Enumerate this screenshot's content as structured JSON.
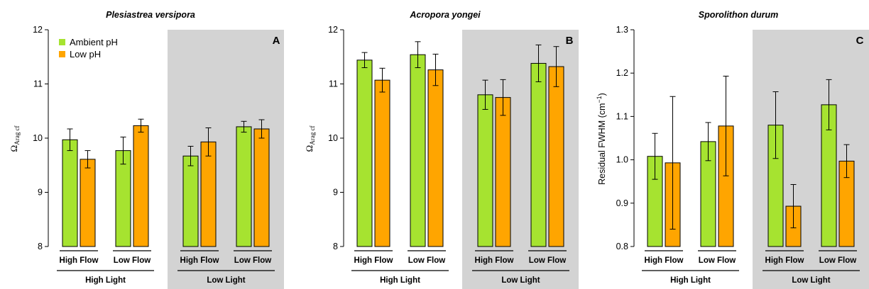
{
  "colors": {
    "ambient": "#a6e330",
    "low": "#ffa500",
    "shade": "#d3d3d3",
    "ink": "#000000"
  },
  "legend": [
    {
      "label": "Ambient pH",
      "color": "#a6e330"
    },
    {
      "label": "Low pH",
      "color": "#ffa500"
    }
  ],
  "chart_data": [
    {
      "type": "bar",
      "panel_label": "A",
      "title": "Plesiastrea versipora",
      "ylabel": {
        "symbol": "Ω",
        "subscript": "Arag cf"
      },
      "ylim": [
        8,
        12
      ],
      "yticks": [
        "8",
        "9",
        "10",
        "11",
        "12"
      ],
      "groups": [
        {
          "flow": "High Flow",
          "light": "High Light"
        },
        {
          "flow": "Low Flow",
          "light": "High Light"
        },
        {
          "flow": "High Flow",
          "light": "Low Light"
        },
        {
          "flow": "Low Flow",
          "light": "Low Light"
        }
      ],
      "light_labels": [
        "High Light",
        "Low Light"
      ],
      "series": [
        {
          "name": "Ambient pH",
          "values": [
            9.97,
            9.77,
            9.67,
            10.21
          ],
          "errors": [
            0.2,
            0.25,
            0.18,
            0.1
          ]
        },
        {
          "name": "Low pH",
          "values": [
            9.61,
            10.23,
            9.93,
            10.17
          ],
          "errors": [
            0.16,
            0.12,
            0.26,
            0.17
          ]
        }
      ],
      "show_legend": true
    },
    {
      "type": "bar",
      "panel_label": "B",
      "title": "Acropora yongei",
      "ylabel": {
        "symbol": "Ω",
        "subscript": "Arag cf"
      },
      "ylim": [
        8,
        12
      ],
      "yticks": [
        "8",
        "9",
        "10",
        "11",
        "12"
      ],
      "groups": [
        {
          "flow": "High Flow",
          "light": "High Light"
        },
        {
          "flow": "Low Flow",
          "light": "High Light"
        },
        {
          "flow": "High Flow",
          "light": "Low Light"
        },
        {
          "flow": "Low Flow",
          "light": "Low Light"
        }
      ],
      "light_labels": [
        "High Light",
        "Low Light"
      ],
      "series": [
        {
          "name": "Ambient pH",
          "values": [
            11.44,
            11.54,
            10.8,
            11.38
          ],
          "errors": [
            0.14,
            0.24,
            0.27,
            0.34
          ]
        },
        {
          "name": "Low pH",
          "values": [
            11.07,
            11.26,
            10.75,
            11.32
          ],
          "errors": [
            0.22,
            0.29,
            0.33,
            0.37
          ]
        }
      ],
      "show_legend": false
    },
    {
      "type": "bar",
      "panel_label": "C",
      "title": "Sporolithon durum",
      "ylabel": {
        "text": "Residual FWHM (cm",
        "superscript": "−1",
        "suffix": ")"
      },
      "ylim": [
        0.8,
        1.3
      ],
      "yticks": [
        "0.8",
        "0.9",
        "1.0",
        "1.1",
        "1.2",
        "1.3"
      ],
      "groups": [
        {
          "flow": "High Flow",
          "light": "High Light"
        },
        {
          "flow": "Low Flow",
          "light": "High Light"
        },
        {
          "flow": "High Flow",
          "light": "Low Light"
        },
        {
          "flow": "Low Flow",
          "light": "Low Light"
        }
      ],
      "light_labels": [
        "High Light",
        "Low Light"
      ],
      "series": [
        {
          "name": "Ambient pH",
          "values": [
            1.008,
            1.042,
            1.08,
            1.127
          ],
          "errors": [
            0.053,
            0.044,
            0.077,
            0.058
          ]
        },
        {
          "name": "Low pH",
          "values": [
            0.993,
            1.078,
            0.893,
            0.997
          ],
          "errors": [
            0.153,
            0.115,
            0.05,
            0.038
          ]
        }
      ],
      "show_legend": false
    }
  ]
}
